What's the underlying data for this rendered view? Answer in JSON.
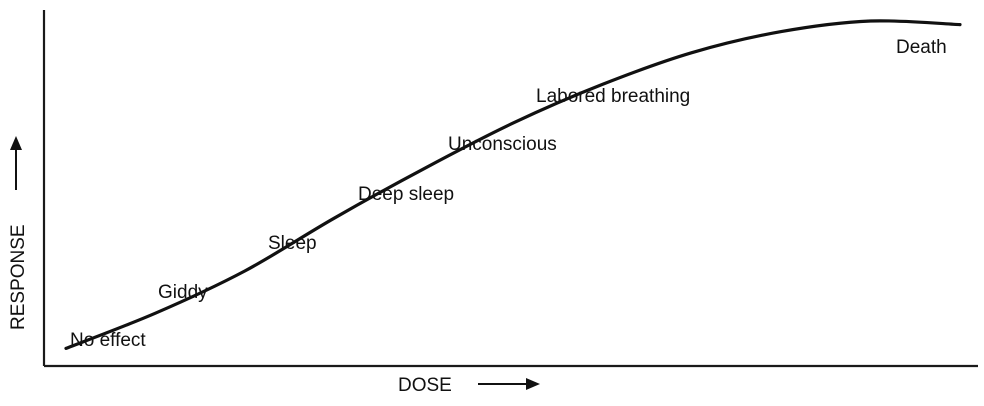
{
  "chart_data": {
    "type": "line",
    "title": "",
    "xlabel": "DOSE",
    "ylabel": "RESPONSE",
    "ticks": "none",
    "grid": false,
    "legend": "none",
    "x": [
      0,
      1,
      2,
      3,
      4,
      5,
      6,
      7,
      8,
      9,
      10
    ],
    "series": [
      {
        "values": [
          0.05,
          0.15,
          0.27,
          0.42,
          0.56,
          0.69,
          0.8,
          0.89,
          0.95,
          0.98,
          0.97
        ]
      }
    ],
    "annotations": [
      {
        "text": "No effect"
      },
      {
        "text": "Giddy"
      },
      {
        "text": "Sleep"
      },
      {
        "text": "Deep sleep"
      },
      {
        "text": "Unconscious"
      },
      {
        "text": "Labored breathing"
      },
      {
        "text": "Death"
      }
    ],
    "colors": {
      "curve": "#111111",
      "axis": "#1a1a1a"
    }
  }
}
